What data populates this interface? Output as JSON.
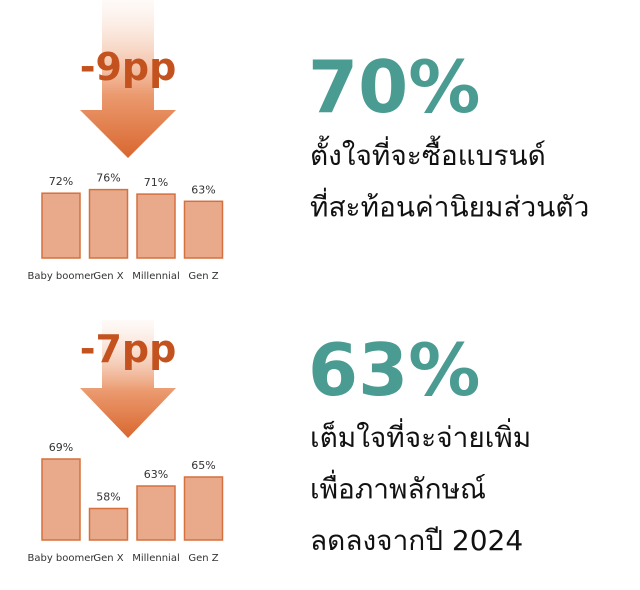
{
  "chart_data": [
    {
      "type": "bar",
      "title": "70%",
      "subtitle": [
        "ตั้งใจที่จะซื้อแบรนด์",
        "ที่สะท้อนค่านิยมส่วนตัว"
      ],
      "annotation": "-9pp",
      "categories": [
        "Baby boomer",
        "Gen X",
        "Millennial",
        "Gen Z"
      ],
      "values": [
        72,
        76,
        71,
        63
      ],
      "value_labels": [
        "72%",
        "76%",
        "71%",
        "63%"
      ],
      "color": "#e9aa8b",
      "ylim": [
        0,
        100
      ]
    },
    {
      "type": "bar",
      "title": "63%",
      "subtitle": [
        "เต็มใจที่จะจ่ายเพิ่ม",
        "เพื่อภาพลักษณ์",
        "ลดลงจากปี 2024"
      ],
      "annotation": "-7pp",
      "categories": [
        "Baby boomer",
        "Gen X",
        "Millennial",
        "Gen Z"
      ],
      "values": [
        69,
        58,
        63,
        65
      ],
      "value_labels": [
        "69%",
        "58%",
        "63%",
        "65%"
      ],
      "color": "#e9aa8b",
      "ylim": [
        51,
        71
      ]
    }
  ]
}
